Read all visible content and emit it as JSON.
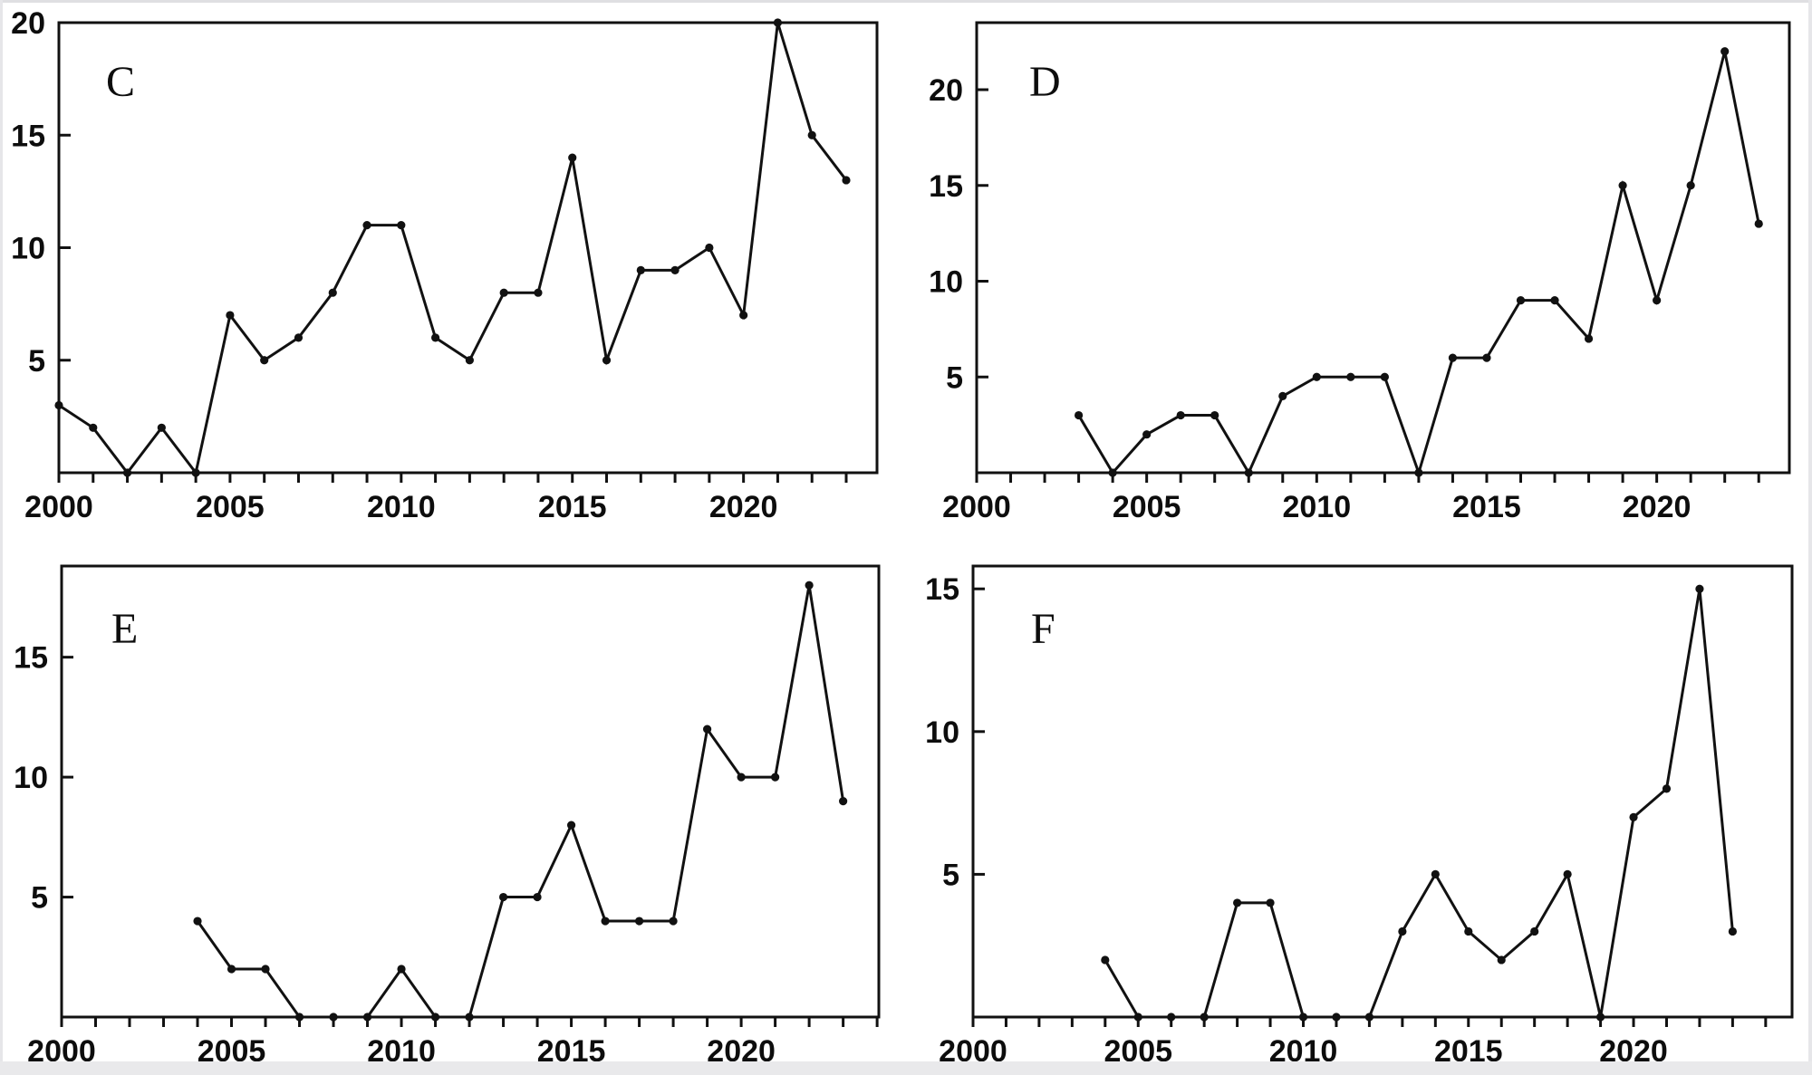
{
  "figure": {
    "kind": "four-panel scientific line-chart figure",
    "background_color": "#ffffff",
    "plot_color": "#111111",
    "label_color": "#0d0d0d",
    "edge_color": "#e9e9eb",
    "x_tick_label_years": [
      2000,
      2005,
      2010,
      2015,
      2020
    ]
  },
  "chart_data": [
    {
      "type": "line",
      "panel_label": "C",
      "title": "",
      "xlabel": "",
      "ylabel": "",
      "marker": "filled-dot",
      "grid": false,
      "legend": null,
      "x": [
        2000,
        2001,
        2002,
        2003,
        2004,
        2005,
        2006,
        2007,
        2008,
        2009,
        2010,
        2011,
        2012,
        2013,
        2014,
        2015,
        2016,
        2017,
        2018,
        2019,
        2020,
        2021,
        2022,
        2023
      ],
      "values": [
        3,
        2,
        0,
        2,
        0,
        7,
        5,
        6,
        8,
        11,
        11,
        6,
        5,
        8,
        8,
        14,
        5,
        9,
        9,
        10,
        7,
        20,
        15,
        13
      ],
      "xlim": [
        2000,
        2023.9
      ],
      "ylim": [
        0,
        20
      ],
      "yticks": [
        5,
        10,
        15,
        20
      ],
      "xtick_labels": [
        "2000",
        "2005",
        "2010",
        "2015",
        "2020"
      ],
      "xtick_label_years": [
        2000,
        2005,
        2010,
        2015,
        2020
      ]
    },
    {
      "type": "line",
      "panel_label": "D",
      "title": "",
      "xlabel": "",
      "ylabel": "",
      "marker": "filled-dot",
      "grid": false,
      "legend": null,
      "x": [
        2003,
        2004,
        2005,
        2006,
        2007,
        2008,
        2009,
        2010,
        2011,
        2012,
        2013,
        2014,
        2015,
        2016,
        2017,
        2018,
        2019,
        2020,
        2021,
        2022,
        2023
      ],
      "values": [
        3,
        0,
        2,
        3,
        3,
        0,
        4,
        5,
        5,
        5,
        0,
        6,
        6,
        9,
        9,
        7,
        15,
        9,
        15,
        22,
        13
      ],
      "xlim": [
        2000,
        2023.9
      ],
      "ylim": [
        0,
        23.5
      ],
      "yticks": [
        5,
        10,
        15,
        20
      ],
      "xtick_labels": [
        "2000",
        "2005",
        "2010",
        "2015",
        "2020"
      ],
      "xtick_label_years": [
        2000,
        2005,
        2010,
        2015,
        2020
      ]
    },
    {
      "type": "line",
      "panel_label": "E",
      "title": "",
      "xlabel": "",
      "ylabel": "",
      "marker": "filled-dot",
      "grid": false,
      "legend": null,
      "x": [
        2004,
        2005,
        2006,
        2007,
        2008,
        2009,
        2010,
        2011,
        2012,
        2013,
        2014,
        2015,
        2016,
        2017,
        2018,
        2019,
        2020,
        2021,
        2022,
        2023
      ],
      "values": [
        4,
        2,
        2,
        0,
        0,
        0,
        2,
        0,
        0,
        5,
        5,
        8,
        4,
        4,
        4,
        12,
        10,
        10,
        18,
        9
      ],
      "xlim": [
        2000,
        2024.05
      ],
      "ylim": [
        0,
        18.8
      ],
      "yticks": [
        5,
        10,
        15
      ],
      "xtick_labels": [
        "2000",
        "2005",
        "2010",
        "2015",
        "2020"
      ],
      "xtick_label_years": [
        2000,
        2005,
        2010,
        2015,
        2020
      ]
    },
    {
      "type": "line",
      "panel_label": "F",
      "title": "",
      "xlabel": "",
      "ylabel": "",
      "marker": "filled-dot",
      "grid": false,
      "legend": null,
      "x": [
        2004,
        2005,
        2006,
        2007,
        2008,
        2009,
        2010,
        2011,
        2012,
        2013,
        2014,
        2015,
        2016,
        2017,
        2018,
        2019,
        2020,
        2021,
        2022,
        2023
      ],
      "values": [
        2,
        0,
        0,
        0,
        4,
        4,
        0,
        0,
        0,
        3,
        5,
        3,
        2,
        3,
        5,
        0,
        7,
        8,
        15,
        3
      ],
      "xlim": [
        2000,
        2024.8
      ],
      "ylim": [
        0,
        15.8
      ],
      "yticks": [
        5,
        10,
        15
      ],
      "xtick_labels": [
        "2000",
        "2005",
        "2010",
        "2015",
        "2020"
      ],
      "xtick_label_years": [
        2000,
        2005,
        2010,
        2015,
        2020
      ]
    }
  ]
}
